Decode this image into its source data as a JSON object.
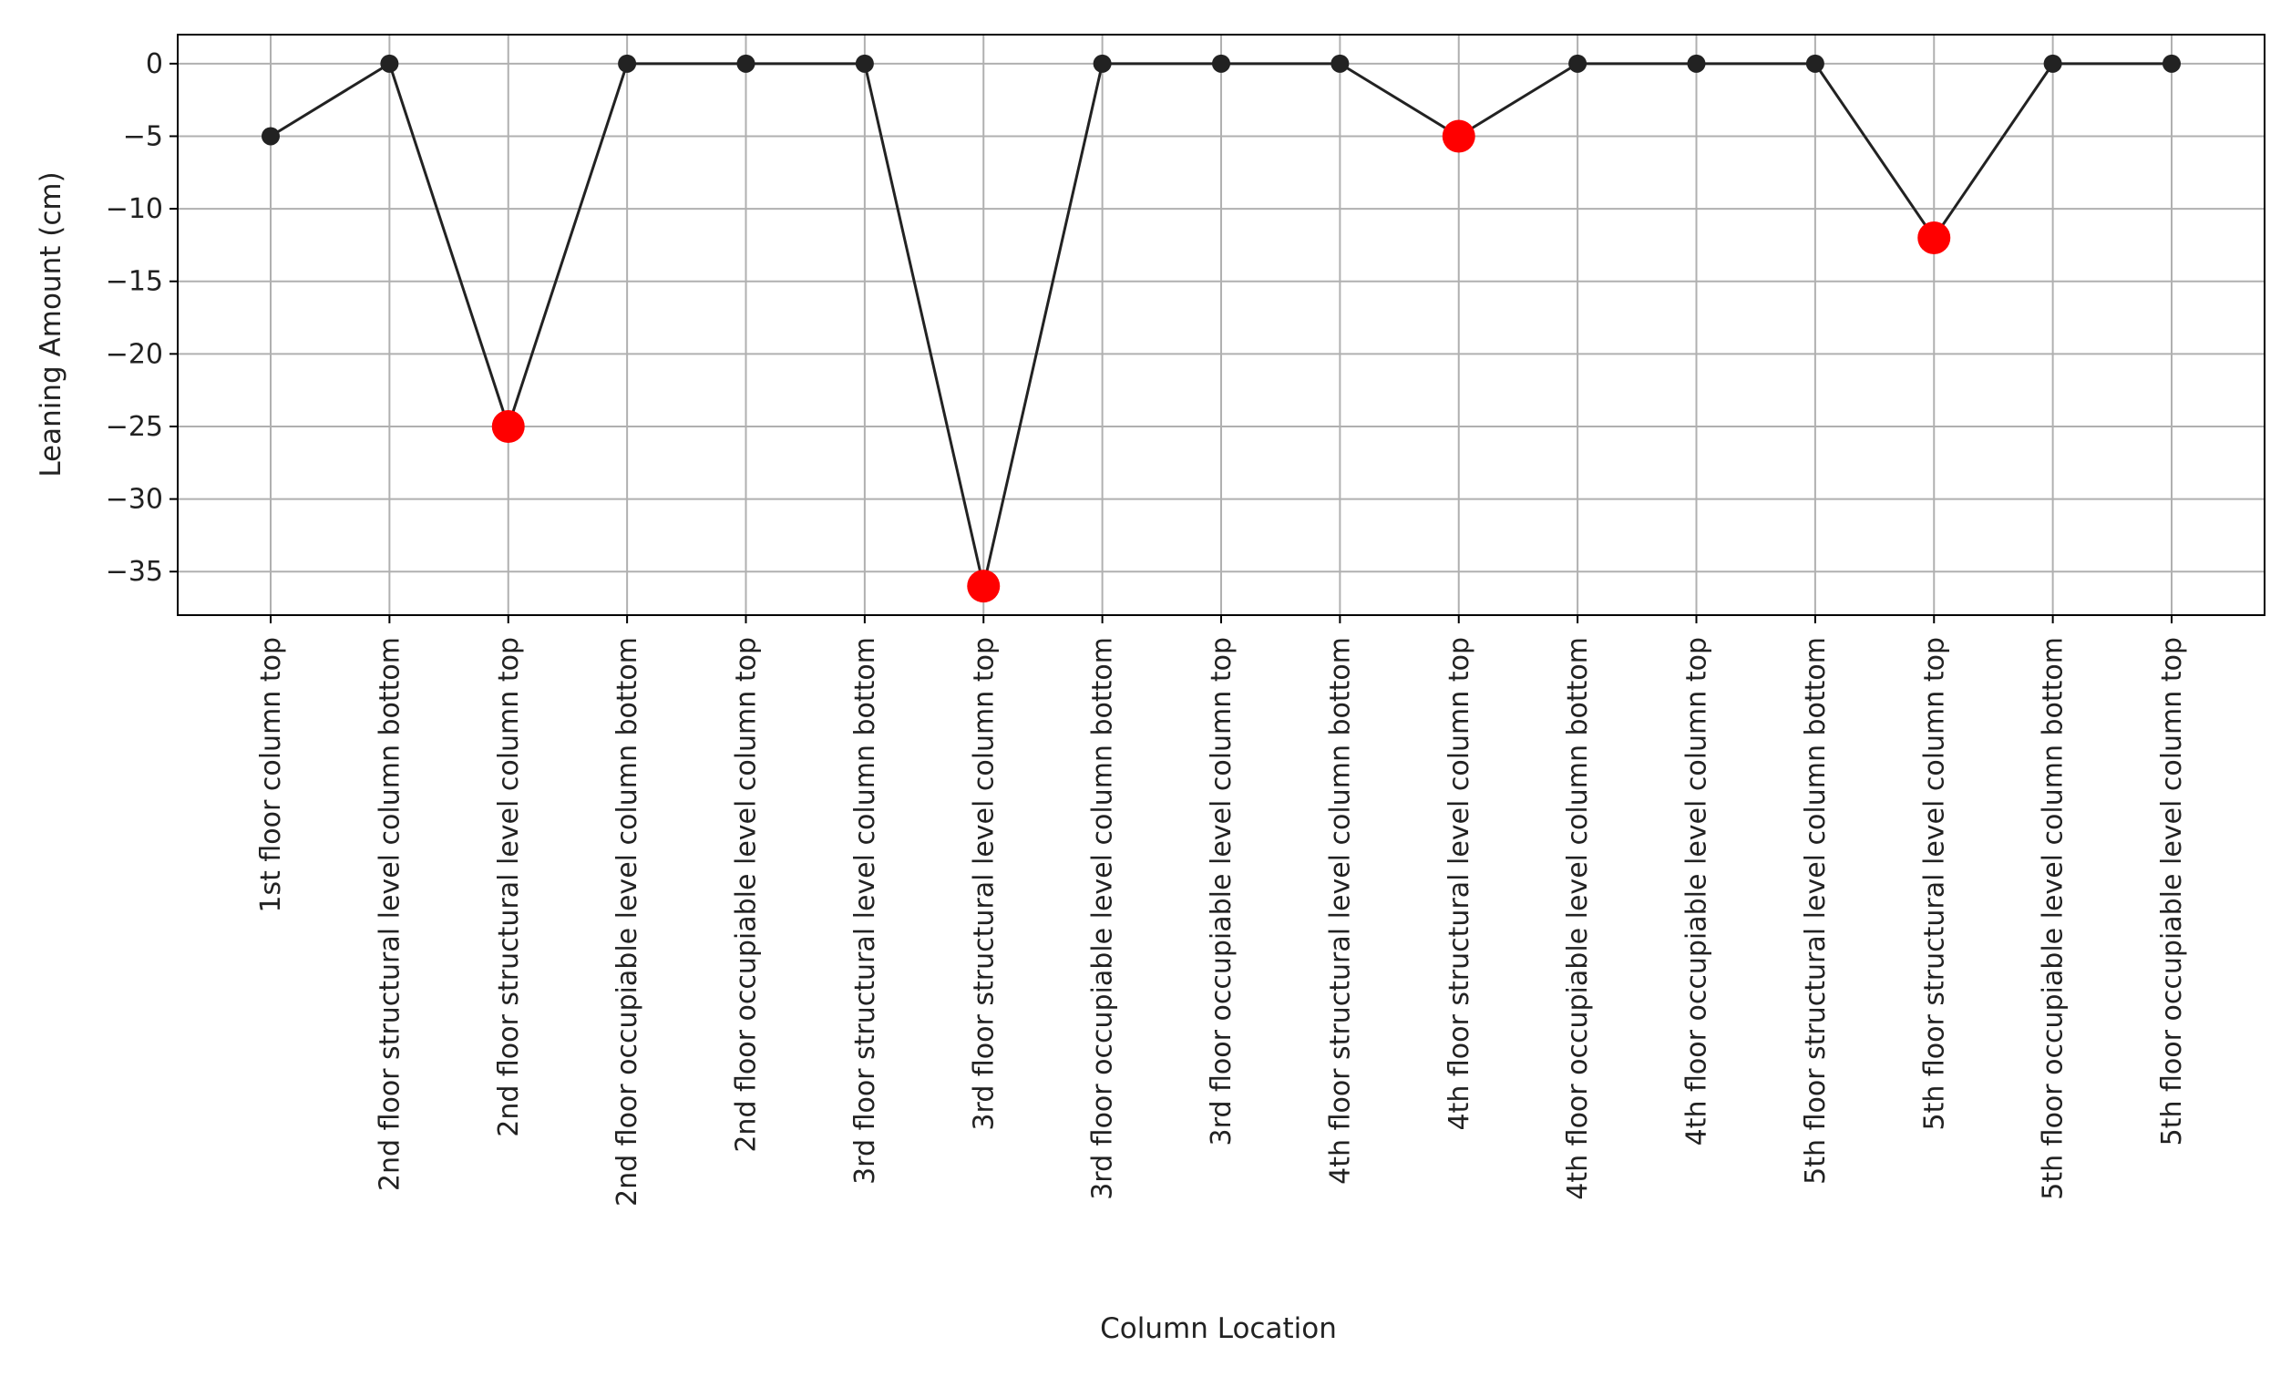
{
  "chart_data": {
    "type": "line",
    "title": "",
    "xlabel": "Column Location",
    "ylabel": "Leaning Amount (cm)",
    "ylim": [
      -38,
      2
    ],
    "yticks": [
      0,
      -5,
      -10,
      -15,
      -20,
      -25,
      -30,
      -35
    ],
    "grid": true,
    "categories": [
      "1st floor column top",
      "2nd floor structural level column bottom",
      "2nd floor structural level column top",
      "2nd floor occupiable level column bottom",
      "2nd floor occupiable level column top",
      "3rd floor structural level column bottom",
      "3rd floor structural level column top",
      "3rd floor occupiable level column bottom",
      "3rd floor occupiable level column top",
      "4th floor structural level column bottom",
      "4th floor structural level column top",
      "4th floor occupiable level column bottom",
      "4th floor occupiable level column top",
      "5th floor structural level column bottom",
      "5th floor structural level column top",
      "5th floor occupiable level column bottom",
      "5th floor occupiable level column top"
    ],
    "values": [
      -5,
      0,
      -25,
      0,
      0,
      0,
      -36,
      0,
      0,
      0,
      -5,
      0,
      0,
      0,
      -12,
      0,
      0
    ],
    "highlighted": [
      false,
      false,
      true,
      false,
      false,
      false,
      true,
      false,
      false,
      false,
      true,
      false,
      false,
      false,
      true,
      false,
      false
    ],
    "colors": {
      "line": "#222222",
      "marker": "#222222",
      "highlight": "#ff0000",
      "grid": "#b0b0b0",
      "axes": "#000000"
    }
  }
}
